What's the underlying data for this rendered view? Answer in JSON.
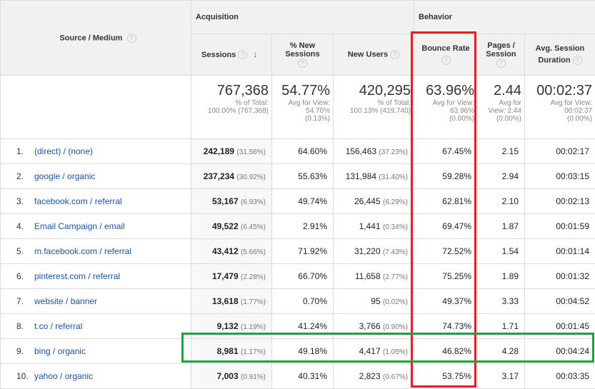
{
  "headers": {
    "source_medium": "Source / Medium",
    "acquisition": "Acquisition",
    "behavior": "Behavior",
    "sessions": "Sessions",
    "pct_new_line1": "% New",
    "pct_new_line2": "Sessions",
    "new_users": "New Users",
    "bounce_rate": "Bounce Rate",
    "pages_line1": "Pages /",
    "pages_line2": "Session",
    "dur_line1": "Avg. Session",
    "dur_line2": "Duration",
    "help_glyph": "?",
    "sort_glyph": "↓"
  },
  "totals": {
    "sessions": {
      "big": "767,368",
      "l1": "% of Total:",
      "l2": "100.00% (767,368)",
      "l3": ""
    },
    "pct_new": {
      "big": "54.77%",
      "l1": "Avg for View:",
      "l2": "54.70%",
      "l3": "(0.13%)"
    },
    "new_users": {
      "big": "420,295",
      "l1": "% of Total:",
      "l2": "100.13% (419,740)",
      "l3": ""
    },
    "bounce": {
      "big": "63.96%",
      "l1": "Avg for View:",
      "l2": "63.96%",
      "l3": "(0.00%)"
    },
    "pages": {
      "big": "2.44",
      "l1": "Avg for",
      "l2": "View: 2.44",
      "l3": "(0.00%)"
    },
    "duration": {
      "big": "00:02:37",
      "l1": "Avg for View:",
      "l2": "00:02:37",
      "l3": "(0.00%)"
    }
  },
  "rows": [
    {
      "n": "1.",
      "source": "(direct) / (none)",
      "sessions": "242,189",
      "sessions_pct": "(31.56%)",
      "pct_new": "64.60%",
      "new_users": "156,463",
      "new_users_pct": "(37.23%)",
      "bounce": "67.45%",
      "pages": "2.15",
      "duration": "00:02:17"
    },
    {
      "n": "2.",
      "source": "google / organic",
      "sessions": "237,234",
      "sessions_pct": "(30.92%)",
      "pct_new": "55.63%",
      "new_users": "131,984",
      "new_users_pct": "(31.40%)",
      "bounce": "59.28%",
      "pages": "2.94",
      "duration": "00:03:15"
    },
    {
      "n": "3.",
      "source": "facebook.com / referral",
      "sessions": "53,167",
      "sessions_pct": "(6.93%)",
      "pct_new": "49.74%",
      "new_users": "26,445",
      "new_users_pct": "(6.29%)",
      "bounce": "62.81%",
      "pages": "2.10",
      "duration": "00:02:13"
    },
    {
      "n": "4.",
      "source": "Email Campaign / email",
      "sessions": "49,522",
      "sessions_pct": "(6.45%)",
      "pct_new": "2.91%",
      "new_users": "1,441",
      "new_users_pct": "(0.34%)",
      "bounce": "69.47%",
      "pages": "1.87",
      "duration": "00:01:59"
    },
    {
      "n": "5.",
      "source": "m.facebook.com / referral",
      "sessions": "43,412",
      "sessions_pct": "(5.66%)",
      "pct_new": "71.92%",
      "new_users": "31,220",
      "new_users_pct": "(7.43%)",
      "bounce": "72.52%",
      "pages": "1.54",
      "duration": "00:01:14"
    },
    {
      "n": "6.",
      "source": "pinterest.com / referral",
      "sessions": "17,479",
      "sessions_pct": "(2.28%)",
      "pct_new": "66.70%",
      "new_users": "11,658",
      "new_users_pct": "(2.77%)",
      "bounce": "75.25%",
      "pages": "1.89",
      "duration": "00:01:32"
    },
    {
      "n": "7.",
      "source": "website / banner",
      "sessions": "13,618",
      "sessions_pct": "(1.77%)",
      "pct_new": "0.70%",
      "new_users": "95",
      "new_users_pct": "(0.02%)",
      "bounce": "49.37%",
      "pages": "3.33",
      "duration": "00:04:52"
    },
    {
      "n": "8.",
      "source": "t.co / referral",
      "sessions": "9,132",
      "sessions_pct": "(1.19%)",
      "pct_new": "41.24%",
      "new_users": "3,766",
      "new_users_pct": "(0.90%)",
      "bounce": "74.73%",
      "pages": "1.71",
      "duration": "00:01:45"
    },
    {
      "n": "9.",
      "source": "bing / organic",
      "sessions": "8,981",
      "sessions_pct": "(1.17%)",
      "pct_new": "49.18%",
      "new_users": "4,417",
      "new_users_pct": "(1.05%)",
      "bounce": "46.82%",
      "pages": "4.28",
      "duration": "00:04:24"
    },
    {
      "n": "10.",
      "source": "yahoo / organic",
      "sessions": "7,003",
      "sessions_pct": "(0.91%)",
      "pct_new": "40.31%",
      "new_users": "2,823",
      "new_users_pct": "(0.67%)",
      "bounce": "53.75%",
      "pages": "3.17",
      "duration": "00:03:35"
    }
  ],
  "highlights": {
    "bounce_column_color": "#e11d24",
    "bing_row_color": "#1fa13e"
  }
}
